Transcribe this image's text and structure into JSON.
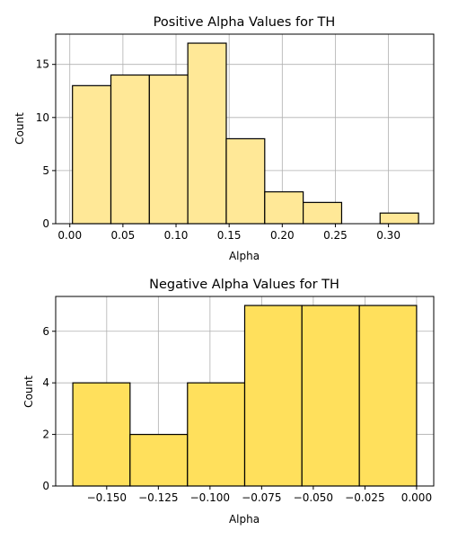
{
  "chart_data": [
    {
      "type": "bar",
      "title": "Positive Alpha Values for TH",
      "xlabel": "Alpha",
      "ylabel": "Count",
      "bar_color": "#ffe897",
      "edge_color": "#000000",
      "grid": true,
      "xlim": [
        -0.0133,
        0.3426
      ],
      "ylim": [
        0,
        17.85
      ],
      "x_ticks": [
        0.0,
        0.05,
        0.1,
        0.15,
        0.2,
        0.25,
        0.3
      ],
      "x_tick_labels": [
        "0.00",
        "0.05",
        "0.10",
        "0.15",
        "0.20",
        "0.25",
        "0.30"
      ],
      "y_ticks": [
        0,
        5,
        10,
        15
      ],
      "y_tick_labels": [
        "0",
        "5",
        "10",
        "15"
      ],
      "bin_edges": [
        0.0025,
        0.0387,
        0.0749,
        0.1111,
        0.1473,
        0.1835,
        0.2197,
        0.2559,
        0.2921,
        0.3283
      ],
      "values": [
        13,
        14,
        14,
        17,
        8,
        3,
        2,
        0,
        1
      ]
    },
    {
      "type": "bar",
      "title": "Negative Alpha Values for TH",
      "xlabel": "Alpha",
      "ylabel": "Count",
      "bar_color": "#ffe05c",
      "edge_color": "#000000",
      "grid": true,
      "xlim": [
        -0.1747,
        0.0083
      ],
      "ylim": [
        0,
        7.35
      ],
      "x_ticks": [
        -0.15,
        -0.125,
        -0.1,
        -0.075,
        -0.05,
        -0.025,
        0.0
      ],
      "x_tick_labels": [
        "−0.150",
        "−0.125",
        "−0.100",
        "−0.075",
        "−0.050",
        "−0.025",
        "0.000"
      ],
      "y_ticks": [
        0,
        2,
        4,
        6
      ],
      "y_tick_labels": [
        "0",
        "2",
        "4",
        "6"
      ],
      "bin_edges": [
        -0.1664,
        -0.1387,
        -0.1109,
        -0.0832,
        -0.0555,
        -0.0277,
        0.0
      ],
      "values": [
        4,
        2,
        4,
        7,
        7,
        7
      ]
    }
  ]
}
